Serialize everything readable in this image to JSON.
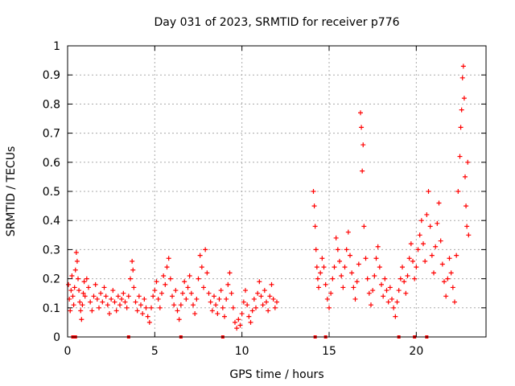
{
  "chart_data": {
    "type": "scatter",
    "title": "Day 031 of 2023, SRMTID for receiver p776",
    "xlabel": "GPS time / hours",
    "ylabel": "SRMTID / TECUs",
    "xlim": [
      0,
      24
    ],
    "ylim": [
      0,
      1
    ],
    "x_ticks": [
      0,
      5,
      10,
      15,
      20
    ],
    "y_ticks": [
      0,
      0.1,
      0.2,
      0.3,
      0.4,
      0.5,
      0.6,
      0.7,
      0.8,
      0.9,
      1
    ],
    "x_tick_labels": [
      "0",
      "5",
      "10",
      "15",
      "20"
    ],
    "y_tick_labels": [
      "0",
      "0.1",
      "0.2",
      "0.3",
      "0.4",
      "0.5",
      "0.6",
      "0.7",
      "0.8",
      "0.9",
      "1"
    ],
    "grid": true,
    "marker": "+",
    "color": "#ff0000",
    "zero_markers_x": [
      0.3,
      0.45,
      3.5,
      6.5,
      8.9,
      14.2,
      14.8,
      19.0,
      19.9,
      20.6
    ],
    "series": [
      {
        "name": "SRMTID",
        "points": [
          [
            0.05,
            0.18
          ],
          [
            0.1,
            0.13
          ],
          [
            0.15,
            0.09
          ],
          [
            0.2,
            0.16
          ],
          [
            0.25,
            0.21
          ],
          [
            0.3,
            0.14
          ],
          [
            0.35,
            0.11
          ],
          [
            0.4,
            0.17
          ],
          [
            0.45,
            0.23
          ],
          [
            0.5,
            0.29
          ],
          [
            0.55,
            0.26
          ],
          [
            0.6,
            0.2
          ],
          [
            0.65,
            0.16
          ],
          [
            0.7,
            0.12
          ],
          [
            0.75,
            0.09
          ],
          [
            0.8,
            0.06
          ],
          [
            0.85,
            0.11
          ],
          [
            0.9,
            0.15
          ],
          [
            0.95,
            0.19
          ],
          [
            1.0,
            0.14
          ],
          [
            1.1,
            0.2
          ],
          [
            1.2,
            0.17
          ],
          [
            1.3,
            0.12
          ],
          [
            1.4,
            0.09
          ],
          [
            1.5,
            0.14
          ],
          [
            1.6,
            0.18
          ],
          [
            1.7,
            0.13
          ],
          [
            1.8,
            0.1
          ],
          [
            1.9,
            0.15
          ],
          [
            2.0,
            0.12
          ],
          [
            2.1,
            0.17
          ],
          [
            2.2,
            0.14
          ],
          [
            2.3,
            0.11
          ],
          [
            2.4,
            0.08
          ],
          [
            2.5,
            0.13
          ],
          [
            2.6,
            0.16
          ],
          [
            2.7,
            0.12
          ],
          [
            2.8,
            0.09
          ],
          [
            2.9,
            0.14
          ],
          [
            3.0,
            0.11
          ],
          [
            3.1,
            0.13
          ],
          [
            3.2,
            0.15
          ],
          [
            3.3,
            0.12
          ],
          [
            3.4,
            0.1
          ],
          [
            3.5,
            0.14
          ],
          [
            3.6,
            0.2
          ],
          [
            3.7,
            0.26
          ],
          [
            3.75,
            0.23
          ],
          [
            3.8,
            0.17
          ],
          [
            3.9,
            0.12
          ],
          [
            4.0,
            0.09
          ],
          [
            4.1,
            0.14
          ],
          [
            4.2,
            0.11
          ],
          [
            4.3,
            0.08
          ],
          [
            4.4,
            0.13
          ],
          [
            4.5,
            0.1
          ],
          [
            4.6,
            0.07
          ],
          [
            4.7,
            0.05
          ],
          [
            4.8,
            0.1
          ],
          [
            4.9,
            0.14
          ],
          [
            5.0,
            0.16
          ],
          [
            5.1,
            0.19
          ],
          [
            5.2,
            0.13
          ],
          [
            5.3,
            0.1
          ],
          [
            5.4,
            0.15
          ],
          [
            5.5,
            0.21
          ],
          [
            5.6,
            0.18
          ],
          [
            5.7,
            0.24
          ],
          [
            5.8,
            0.27
          ],
          [
            5.9,
            0.2
          ],
          [
            6.0,
            0.14
          ],
          [
            6.1,
            0.11
          ],
          [
            6.2,
            0.16
          ],
          [
            6.3,
            0.09
          ],
          [
            6.4,
            0.06
          ],
          [
            6.5,
            0.11
          ],
          [
            6.6,
            0.15
          ],
          [
            6.7,
            0.19
          ],
          [
            6.8,
            0.13
          ],
          [
            6.9,
            0.17
          ],
          [
            7.0,
            0.21
          ],
          [
            7.1,
            0.15
          ],
          [
            7.2,
            0.11
          ],
          [
            7.3,
            0.08
          ],
          [
            7.4,
            0.13
          ],
          [
            7.5,
            0.2
          ],
          [
            7.6,
            0.28
          ],
          [
            7.7,
            0.24
          ],
          [
            7.8,
            0.17
          ],
          [
            7.9,
            0.3
          ],
          [
            8.0,
            0.22
          ],
          [
            8.1,
            0.15
          ],
          [
            8.2,
            0.12
          ],
          [
            8.3,
            0.09
          ],
          [
            8.4,
            0.14
          ],
          [
            8.5,
            0.11
          ],
          [
            8.6,
            0.08
          ],
          [
            8.7,
            0.13
          ],
          [
            8.8,
            0.16
          ],
          [
            8.9,
            0.1
          ],
          [
            9.0,
            0.07
          ],
          [
            9.1,
            0.13
          ],
          [
            9.2,
            0.18
          ],
          [
            9.3,
            0.22
          ],
          [
            9.4,
            0.15
          ],
          [
            9.5,
            0.1
          ],
          [
            9.6,
            0.05
          ],
          [
            9.7,
            0.03
          ],
          [
            9.8,
            0.06
          ],
          [
            9.9,
            0.04
          ],
          [
            10.0,
            0.08
          ],
          [
            10.1,
            0.12
          ],
          [
            10.2,
            0.16
          ],
          [
            10.3,
            0.11
          ],
          [
            10.4,
            0.07
          ],
          [
            10.5,
            0.05
          ],
          [
            10.6,
            0.09
          ],
          [
            10.7,
            0.13
          ],
          [
            10.8,
            0.1
          ],
          [
            10.9,
            0.15
          ],
          [
            11.0,
            0.19
          ],
          [
            11.1,
            0.14
          ],
          [
            11.2,
            0.11
          ],
          [
            11.3,
            0.16
          ],
          [
            11.4,
            0.12
          ],
          [
            11.5,
            0.09
          ],
          [
            11.6,
            0.14
          ],
          [
            11.7,
            0.18
          ],
          [
            11.8,
            0.13
          ],
          [
            11.9,
            0.1
          ],
          [
            12.0,
            0.12
          ],
          [
            14.1,
            0.5
          ],
          [
            14.15,
            0.45
          ],
          [
            14.2,
            0.38
          ],
          [
            14.25,
            0.3
          ],
          [
            14.3,
            0.24
          ],
          [
            14.35,
            0.2
          ],
          [
            14.4,
            0.17
          ],
          [
            14.5,
            0.22
          ],
          [
            14.6,
            0.27
          ],
          [
            14.7,
            0.24
          ],
          [
            14.8,
            0.18
          ],
          [
            14.9,
            0.13
          ],
          [
            15.0,
            0.1
          ],
          [
            15.1,
            0.15
          ],
          [
            15.2,
            0.2
          ],
          [
            15.3,
            0.24
          ],
          [
            15.4,
            0.34
          ],
          [
            15.5,
            0.3
          ],
          [
            15.6,
            0.26
          ],
          [
            15.7,
            0.21
          ],
          [
            15.8,
            0.17
          ],
          [
            15.9,
            0.24
          ],
          [
            16.0,
            0.3
          ],
          [
            16.1,
            0.36
          ],
          [
            16.2,
            0.28
          ],
          [
            16.3,
            0.22
          ],
          [
            16.4,
            0.17
          ],
          [
            16.5,
            0.13
          ],
          [
            16.6,
            0.19
          ],
          [
            16.7,
            0.25
          ],
          [
            16.8,
            0.77
          ],
          [
            16.85,
            0.72
          ],
          [
            16.9,
            0.57
          ],
          [
            16.95,
            0.66
          ],
          [
            17.0,
            0.38
          ],
          [
            17.1,
            0.27
          ],
          [
            17.2,
            0.2
          ],
          [
            17.3,
            0.15
          ],
          [
            17.4,
            0.11
          ],
          [
            17.5,
            0.16
          ],
          [
            17.6,
            0.21
          ],
          [
            17.7,
            0.27
          ],
          [
            17.8,
            0.31
          ],
          [
            17.9,
            0.24
          ],
          [
            18.0,
            0.18
          ],
          [
            18.1,
            0.14
          ],
          [
            18.2,
            0.2
          ],
          [
            18.3,
            0.16
          ],
          [
            18.4,
            0.12
          ],
          [
            18.5,
            0.17
          ],
          [
            18.6,
            0.13
          ],
          [
            18.7,
            0.1
          ],
          [
            18.8,
            0.07
          ],
          [
            18.9,
            0.12
          ],
          [
            19.0,
            0.16
          ],
          [
            19.1,
            0.2
          ],
          [
            19.2,
            0.24
          ],
          [
            19.3,
            0.19
          ],
          [
            19.4,
            0.15
          ],
          [
            19.5,
            0.21
          ],
          [
            19.6,
            0.27
          ],
          [
            19.7,
            0.32
          ],
          [
            19.8,
            0.26
          ],
          [
            19.9,
            0.2
          ],
          [
            20.0,
            0.24
          ],
          [
            20.1,
            0.3
          ],
          [
            20.2,
            0.35
          ],
          [
            20.3,
            0.4
          ],
          [
            20.4,
            0.32
          ],
          [
            20.5,
            0.26
          ],
          [
            20.6,
            0.42
          ],
          [
            20.7,
            0.5
          ],
          [
            20.8,
            0.38
          ],
          [
            20.9,
            0.28
          ],
          [
            21.0,
            0.22
          ],
          [
            21.1,
            0.31
          ],
          [
            21.2,
            0.39
          ],
          [
            21.3,
            0.46
          ],
          [
            21.4,
            0.33
          ],
          [
            21.5,
            0.25
          ],
          [
            21.6,
            0.19
          ],
          [
            21.7,
            0.14
          ],
          [
            21.8,
            0.2
          ],
          [
            21.9,
            0.27
          ],
          [
            22.0,
            0.22
          ],
          [
            22.1,
            0.17
          ],
          [
            22.2,
            0.12
          ],
          [
            22.3,
            0.28
          ],
          [
            22.4,
            0.5
          ],
          [
            22.5,
            0.62
          ],
          [
            22.55,
            0.72
          ],
          [
            22.6,
            0.78
          ],
          [
            22.65,
            0.89
          ],
          [
            22.7,
            0.93
          ],
          [
            22.75,
            0.82
          ],
          [
            22.8,
            0.55
          ],
          [
            22.85,
            0.45
          ],
          [
            22.9,
            0.38
          ],
          [
            22.95,
            0.6
          ],
          [
            23.0,
            0.35
          ]
        ]
      }
    ]
  }
}
